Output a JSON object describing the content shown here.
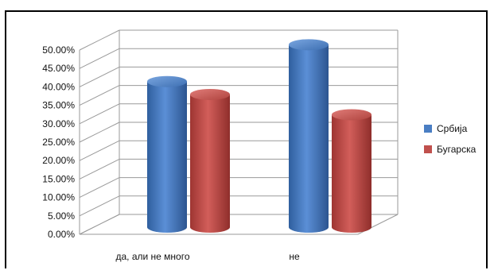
{
  "chart_data": {
    "type": "bar",
    "categories": [
      "да, али не много",
      "не"
    ],
    "series": [
      {
        "name": "Србија",
        "values": [
          0.395,
          0.495
        ],
        "color": "#4a7ec3"
      },
      {
        "name": "Бугарска",
        "values": [
          0.36,
          0.305
        ],
        "color": "#c0504d"
      }
    ],
    "yticks": [
      "0.00%",
      "5.00%",
      "10.00%",
      "15.00%",
      "20.00%",
      "25.00%",
      "30.00%",
      "35.00%",
      "40.00%",
      "45.00%",
      "50.00%"
    ],
    "ylim": [
      0,
      0.5
    ],
    "grid": true,
    "legend_position": "right",
    "three_d": true
  }
}
